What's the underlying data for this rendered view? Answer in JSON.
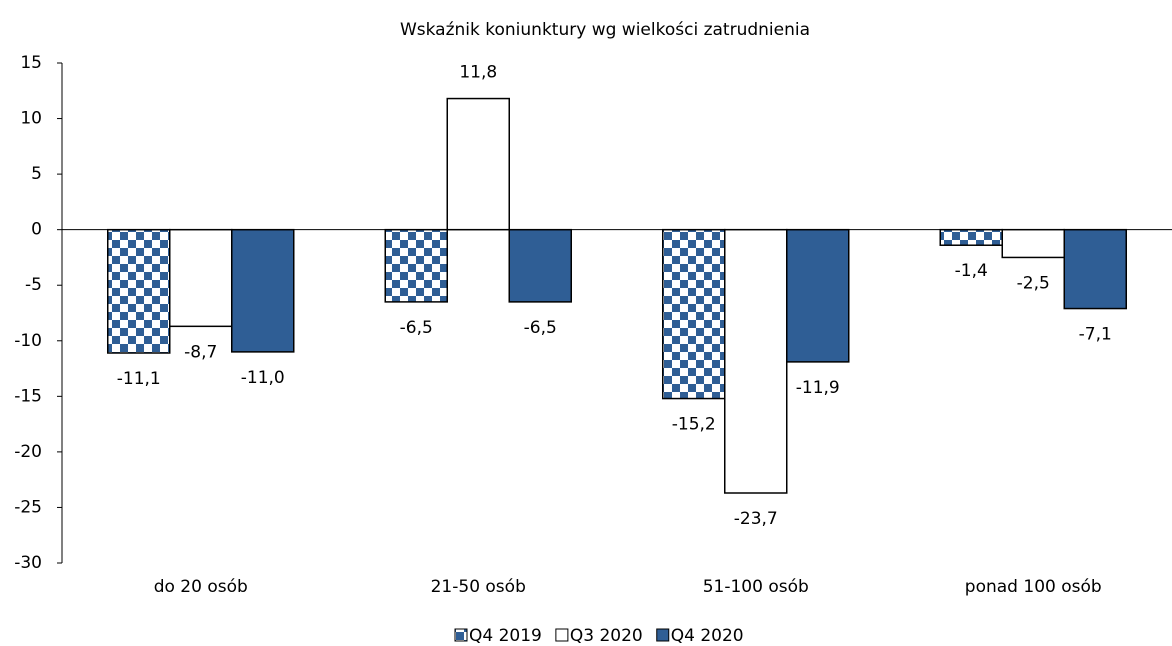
{
  "chart_data": {
    "type": "bar",
    "title": "Wskaźnik koniunktury wg wielkości zatrudnienia",
    "categories": [
      "do 20 osób",
      "21-50 osób",
      "51-100 osób",
      "ponad 100 osób"
    ],
    "series": [
      {
        "name": "Q4 2019",
        "color": "#2f5e95",
        "pattern": "checkerboard",
        "values": [
          -11.1,
          -6.5,
          -15.2,
          -1.4
        ],
        "value_labels": [
          "-11,1",
          "-6,5",
          "-15,2",
          "-1,4"
        ]
      },
      {
        "name": "Q3 2020",
        "color": "#ffffff",
        "values": [
          -8.7,
          11.8,
          -23.7,
          -2.5
        ],
        "value_labels": [
          "-8,7",
          "11,8",
          "-23,7",
          "-2,5"
        ]
      },
      {
        "name": "Q4 2020",
        "color": "#2f5e95",
        "values": [
          -11.0,
          -6.5,
          -11.9,
          -7.1
        ],
        "value_labels": [
          "-11,0",
          "-6,5",
          "-11,9",
          "-7,1"
        ]
      }
    ],
    "ylim": [
      -30,
      15
    ],
    "yticks": [
      15,
      10,
      5,
      0,
      -5,
      -10,
      -15,
      -20,
      -25,
      -30
    ],
    "legend": "bottom"
  }
}
